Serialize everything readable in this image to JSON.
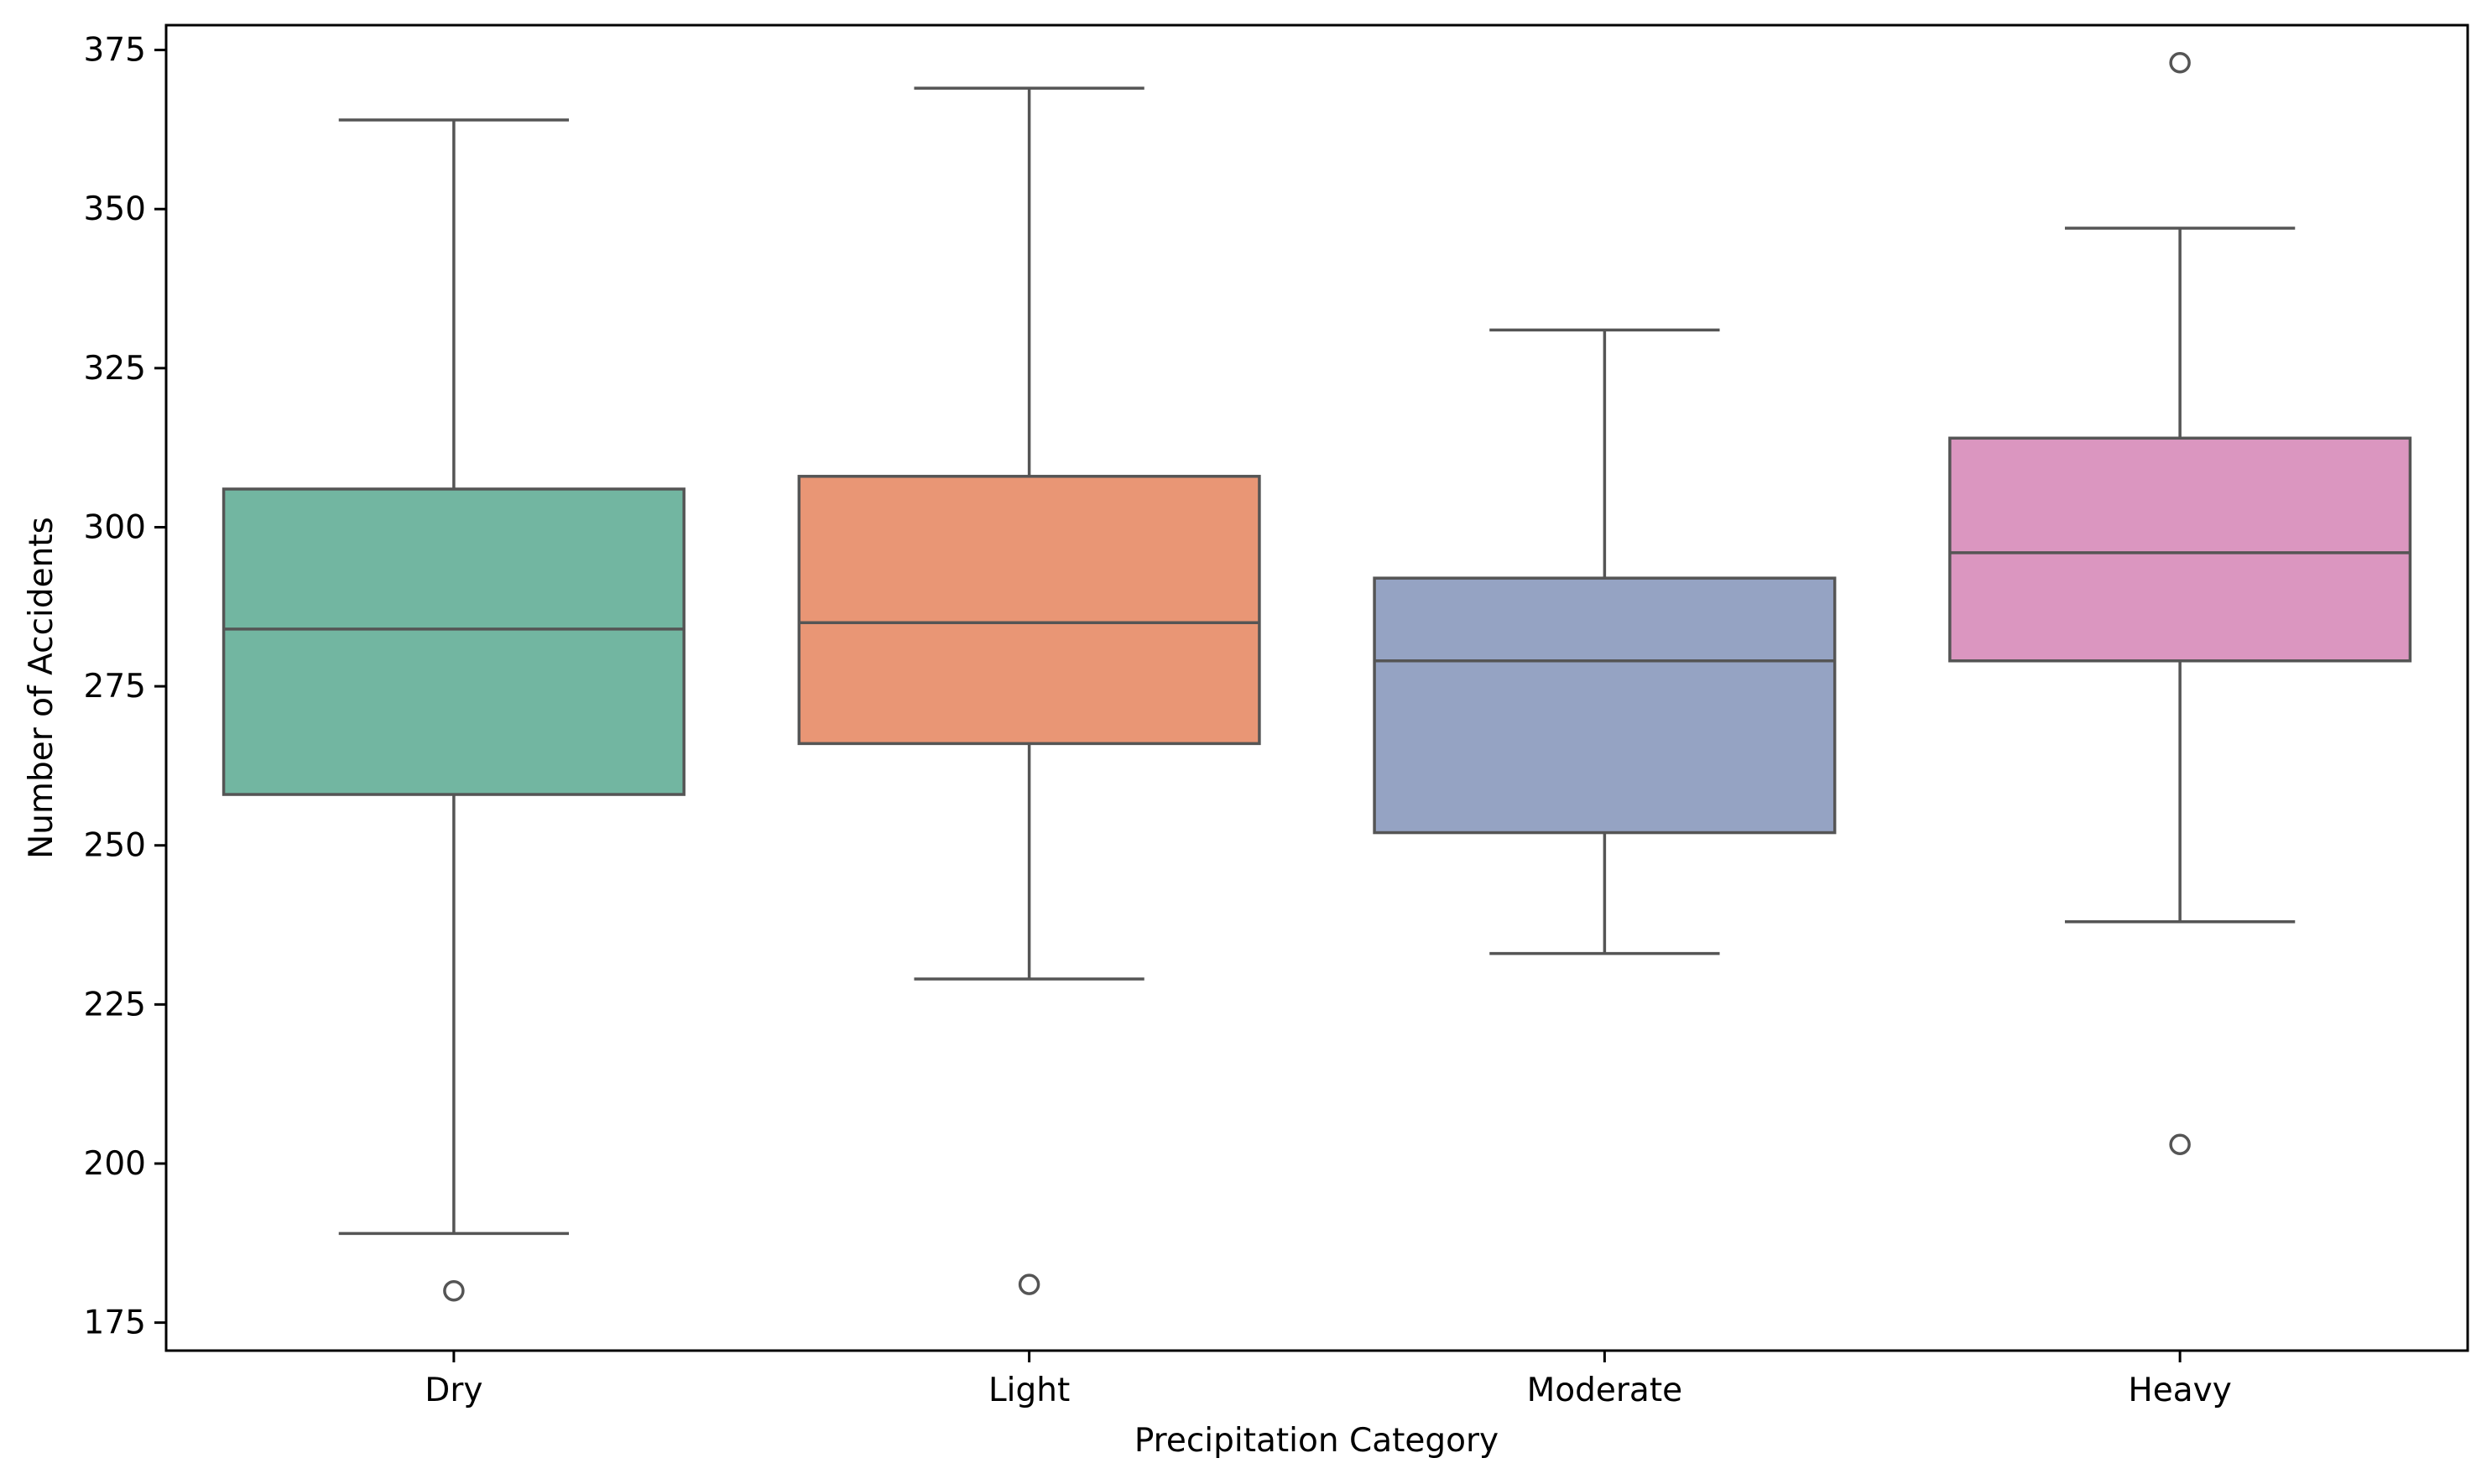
{
  "chart_data": {
    "type": "box",
    "xlabel": "Precipitation Category",
    "ylabel": "Number of Accidents",
    "ylim": [
      170.6,
      378.9
    ],
    "yticks": [
      175,
      200,
      225,
      250,
      275,
      300,
      325,
      350,
      375
    ],
    "grid": false,
    "legend": "none",
    "categories": [
      "Dry",
      "Light",
      "Moderate",
      "Heavy"
    ],
    "boxes": [
      {
        "category": "Dry",
        "color": "#72b6a1",
        "whisker_low": 189,
        "q1": 258,
        "median": 284,
        "q3": 306,
        "whisker_high": 364,
        "outliers": [
          180
        ]
      },
      {
        "category": "Light",
        "color": "#e99675",
        "whisker_low": 229,
        "q1": 266,
        "median": 285,
        "q3": 308,
        "whisker_high": 369,
        "outliers": [
          181
        ]
      },
      {
        "category": "Moderate",
        "color": "#95a3c3",
        "whisker_low": 233,
        "q1": 252,
        "median": 279,
        "q3": 292,
        "whisker_high": 331,
        "outliers": []
      },
      {
        "category": "Heavy",
        "color": "#db96c0",
        "whisker_low": 238,
        "q1": 279,
        "median": 296,
        "q3": 314,
        "whisker_high": 347,
        "outliers": [
          203,
          373
        ]
      }
    ],
    "line_color": "#555555"
  }
}
